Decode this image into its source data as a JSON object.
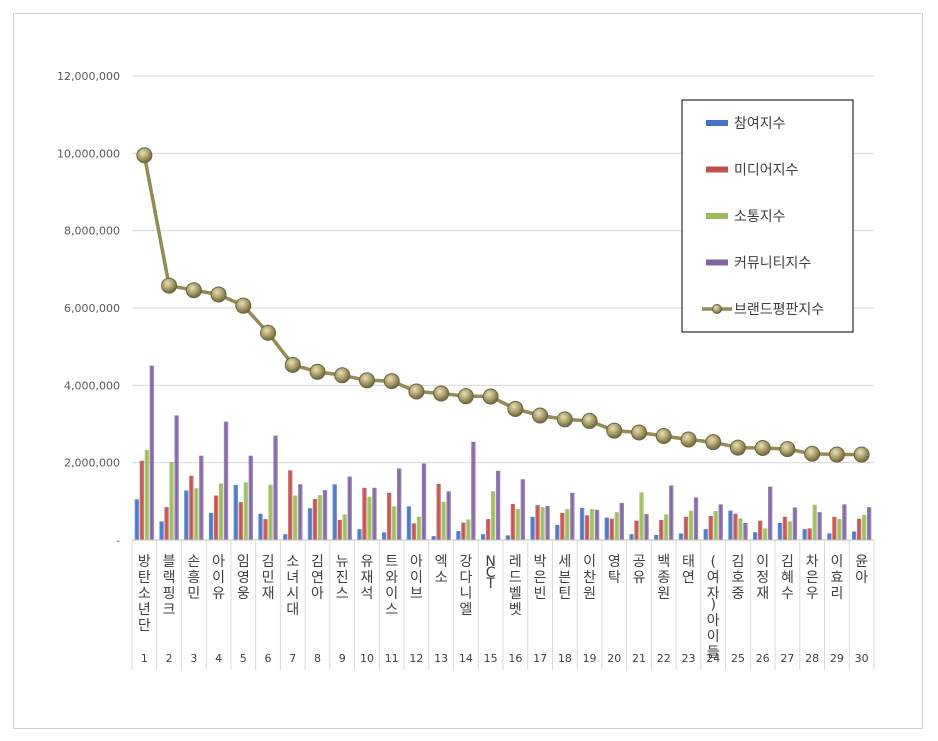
{
  "chart_data": {
    "type": "bar",
    "categories": [
      "방탄소년단",
      "블랙핑크",
      "손흥민",
      "아이유",
      "임영웅",
      "김민재",
      "소녀시대",
      "김연아",
      "뉴진스",
      "유재석",
      "트와이스",
      "아이브",
      "엑소",
      "강다니엘",
      "NCT",
      "레드벨벳",
      "박은빈",
      "세븐틴",
      "이찬원",
      "영탁",
      "공유",
      "백종원",
      "태연",
      "(여자)아이들",
      "김호중",
      "이정재",
      "김혜수",
      "차은우",
      "이효리",
      "윤아"
    ],
    "ranks": [
      "1",
      "2",
      "3",
      "4",
      "5",
      "6",
      "7",
      "8",
      "9",
      "10",
      "11",
      "12",
      "13",
      "14",
      "15",
      "16",
      "17",
      "18",
      "19",
      "20",
      "21",
      "22",
      "23",
      "24",
      "25",
      "26",
      "27",
      "28",
      "29",
      "30"
    ],
    "series": [
      {
        "name": "참여지수",
        "kind": "bar",
        "color": "#4472C4",
        "values": [
          1050000,
          480000,
          1280000,
          700000,
          1420000,
          680000,
          150000,
          820000,
          1440000,
          280000,
          200000,
          870000,
          100000,
          230000,
          150000,
          120000,
          600000,
          390000,
          830000,
          580000,
          150000,
          130000,
          170000,
          280000,
          760000,
          200000,
          440000,
          280000,
          170000,
          220000
        ]
      },
      {
        "name": "미디어지수",
        "kind": "bar",
        "color": "#C0504D",
        "values": [
          2050000,
          850000,
          1660000,
          1150000,
          980000,
          540000,
          1800000,
          1060000,
          520000,
          1350000,
          1220000,
          430000,
          1450000,
          450000,
          540000,
          930000,
          900000,
          700000,
          640000,
          550000,
          500000,
          520000,
          600000,
          620000,
          680000,
          500000,
          600000,
          300000,
          600000,
          550000
        ]
      },
      {
        "name": "소통지수",
        "kind": "bar",
        "color": "#9BBB59",
        "values": [
          2330000,
          2020000,
          1340000,
          1460000,
          1490000,
          1430000,
          1150000,
          1160000,
          660000,
          1120000,
          870000,
          600000,
          990000,
          530000,
          1260000,
          800000,
          850000,
          800000,
          800000,
          720000,
          1230000,
          660000,
          760000,
          750000,
          560000,
          300000,
          480000,
          910000,
          540000,
          650000
        ]
      },
      {
        "name": "커뮤니티지수",
        "kind": "bar",
        "color": "#8064A2",
        "values": [
          4510000,
          3220000,
          2180000,
          3060000,
          2180000,
          2700000,
          1440000,
          1290000,
          1640000,
          1350000,
          1850000,
          1980000,
          1260000,
          2540000,
          1790000,
          1570000,
          880000,
          1220000,
          780000,
          960000,
          670000,
          1410000,
          1100000,
          920000,
          440000,
          1380000,
          840000,
          720000,
          920000,
          850000
        ]
      },
      {
        "name": "브랜드평판지수",
        "kind": "line",
        "color": "#948A54",
        "values": [
          9950000,
          6580000,
          6460000,
          6350000,
          6060000,
          5360000,
          4530000,
          4350000,
          4260000,
          4130000,
          4110000,
          3840000,
          3790000,
          3720000,
          3710000,
          3390000,
          3220000,
          3120000,
          3080000,
          2830000,
          2780000,
          2690000,
          2600000,
          2530000,
          2390000,
          2380000,
          2350000,
          2230000,
          2210000,
          2210000
        ]
      }
    ],
    "ylim": [
      0,
      12000000
    ],
    "yticks": [
      "-",
      "2,000,000",
      "4,000,000",
      "6,000,000",
      "8,000,000",
      "10,000,000",
      "12,000,000"
    ],
    "grid": true,
    "legend_position": "right"
  }
}
